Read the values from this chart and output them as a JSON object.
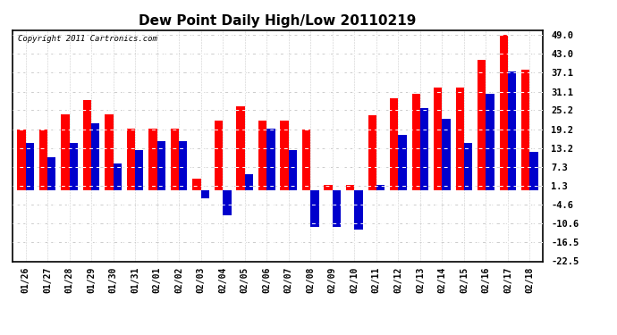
{
  "title": "Dew Point Daily High/Low 20110219",
  "copyright": "Copyright 2011 Cartronics.com",
  "dates": [
    "01/26",
    "01/27",
    "01/28",
    "01/29",
    "01/30",
    "01/31",
    "02/01",
    "02/02",
    "02/03",
    "02/04",
    "02/05",
    "02/06",
    "02/07",
    "02/08",
    "02/09",
    "02/10",
    "02/11",
    "02/12",
    "02/13",
    "02/14",
    "02/15",
    "02/16",
    "02/17",
    "02/18"
  ],
  "highs": [
    19.2,
    19.2,
    24.0,
    28.5,
    24.0,
    19.5,
    19.5,
    19.5,
    3.5,
    22.0,
    26.5,
    22.0,
    22.0,
    19.2,
    1.5,
    1.5,
    23.5,
    29.0,
    30.5,
    32.5,
    32.5,
    41.0,
    49.0,
    38.0
  ],
  "lows": [
    15.0,
    10.5,
    15.0,
    21.0,
    8.5,
    12.5,
    15.5,
    15.5,
    -2.5,
    -8.0,
    5.0,
    19.5,
    12.5,
    -11.5,
    -11.5,
    -12.5,
    1.5,
    17.5,
    26.0,
    22.5,
    15.0,
    30.5,
    37.5,
    12.0
  ],
  "high_color": "#ff0000",
  "low_color": "#0000cc",
  "plot_bg_color": "#ffffff",
  "fig_bg_color": "#ffffff",
  "grid_color": "#c8c8c8",
  "grid_dash_color": "#ffffff",
  "yticks": [
    49.0,
    43.0,
    37.1,
    31.1,
    25.2,
    19.2,
    13.2,
    7.3,
    1.3,
    -4.6,
    -10.6,
    -16.5,
    -22.5
  ],
  "ylim_min": -22.5,
  "ylim_max": 50.5,
  "bar_width": 0.38
}
